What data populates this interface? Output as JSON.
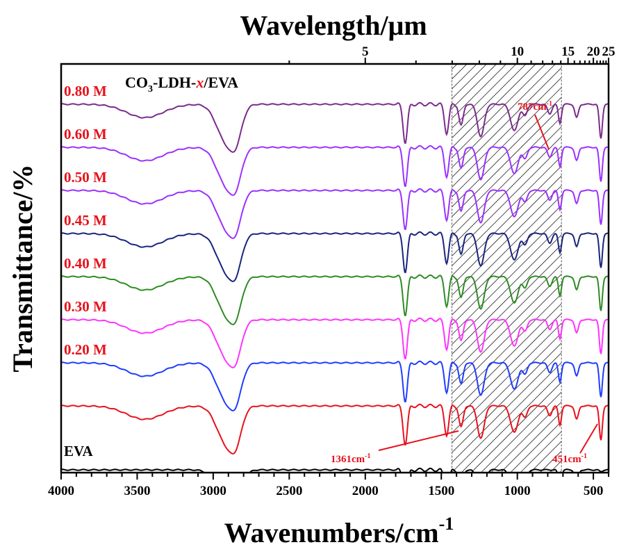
{
  "chart_data": {
    "type": "line",
    "title": "",
    "xlabel": "Wavenumbers/cm",
    "xlabel_sup": "-1",
    "x2label": "Wavelength/μm",
    "ylabel": "Transmittance/%",
    "xlim": [
      4000,
      400
    ],
    "x_reversed": true,
    "x_ticks": [
      4000,
      3500,
      3000,
      2500,
      2000,
      1500,
      1000,
      500
    ],
    "x_tick_labels": [
      "4000",
      "3500",
      "3000",
      "2500",
      "2000",
      "1500",
      "1000",
      "500"
    ],
    "x2_ticks": [
      5,
      10,
      15,
      20,
      25
    ],
    "x2_tick_labels": [
      "5",
      "10",
      "15",
      "20",
      "25"
    ],
    "legend_title": {
      "prefix": "CO",
      "sub": "3",
      "mid": "-LDH-",
      "italic": "x",
      "suffix": "/EVA"
    },
    "shaded_region": [
      1430,
      710
    ],
    "series": [
      {
        "name": "0.80 M",
        "color": "#7b2a8c",
        "label_color": "#e8111b",
        "offset": 8.0
      },
      {
        "name": "0.60 M",
        "color": "#9b30ff",
        "label_color": "#e8111b",
        "offset": 7.0
      },
      {
        "name": "0.50 M",
        "color": "#9b30ff",
        "label_color": "#e8111b",
        "offset": 6.0
      },
      {
        "name": "0.45 M",
        "color": "#1a237e",
        "label_color": "#e8111b",
        "offset": 5.0
      },
      {
        "name": "0.40 M",
        "color": "#2e8b22",
        "label_color": "#e8111b",
        "offset": 4.0
      },
      {
        "name": "0.30 M",
        "color": "#ff33ff",
        "label_color": "#e8111b",
        "offset": 3.0
      },
      {
        "name": "0.20 M",
        "color": "#1e3cff",
        "label_color": "#e8111b",
        "offset": 2.0
      },
      {
        "name": "",
        "color": "#e8111b",
        "label_color": "#e8111b",
        "offset": 1.0
      },
      {
        "name": "EVA",
        "color": "#000000",
        "label_color": "#000000",
        "offset": 0.0
      }
    ],
    "annotations": [
      {
        "text": "787cm",
        "sup": "-1",
        "x": 787
      },
      {
        "text": "1361cm",
        "sup": "-1",
        "x": 1361
      },
      {
        "text": "451cm",
        "sup": "-1",
        "x": 451
      }
    ]
  },
  "colors": {
    "accent": "#e8111b",
    "axis": "#000000"
  }
}
